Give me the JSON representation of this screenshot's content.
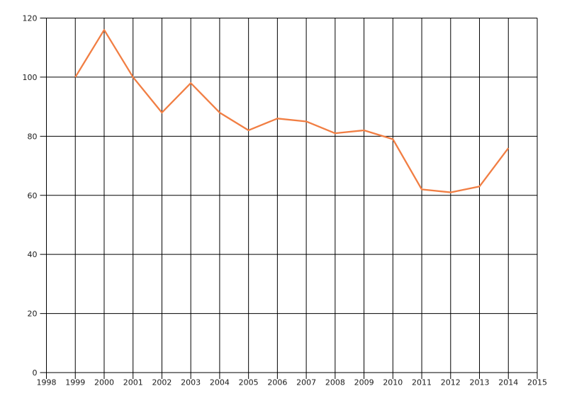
{
  "chart_data": {
    "type": "line",
    "title": "",
    "xlabel": "",
    "ylabel": "",
    "x": [
      1999,
      2000,
      2001,
      2002,
      2003,
      2004,
      2005,
      2006,
      2007,
      2008,
      2009,
      2010,
      2011,
      2012,
      2013,
      2014
    ],
    "values": [
      100,
      116,
      100,
      88,
      98,
      88,
      82,
      86,
      85,
      81,
      82,
      79,
      62,
      61,
      63,
      76
    ],
    "series_name": "",
    "xlim": [
      1998,
      2015
    ],
    "ylim": [
      0,
      120
    ],
    "x_ticks": [
      1998,
      1999,
      2000,
      2001,
      2002,
      2003,
      2004,
      2005,
      2006,
      2007,
      2008,
      2009,
      2010,
      2011,
      2012,
      2013,
      2014,
      2015
    ],
    "y_ticks": [
      0,
      20,
      40,
      60,
      80,
      100,
      120
    ],
    "grid": true,
    "legend": false,
    "line_color": "#F17E43",
    "gridline_color": "#000000",
    "label_color": "#1a1a1a",
    "background_color": "#ffffff"
  }
}
